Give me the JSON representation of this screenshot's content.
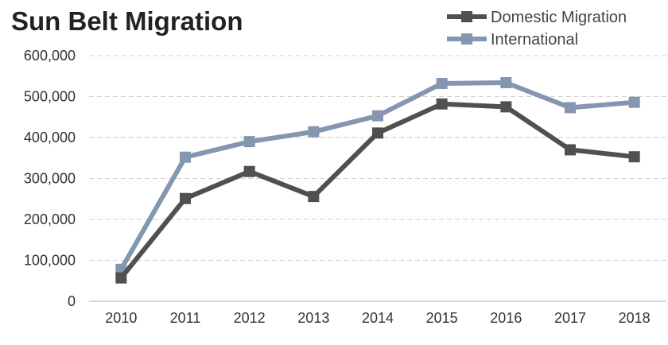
{
  "chart_data": {
    "type": "line",
    "title": "Sun Belt Migration",
    "categories": [
      "2010",
      "2011",
      "2012",
      "2013",
      "2014",
      "2015",
      "2016",
      "2017",
      "2018"
    ],
    "series": [
      {
        "name": "Domestic Migration",
        "color": "#505050",
        "values": [
          57000,
          251000,
          317000,
          256000,
          411000,
          482000,
          475000,
          370000,
          353000
        ]
      },
      {
        "name": "International",
        "color": "#8497B0",
        "values": [
          78000,
          352000,
          390000,
          414000,
          453000,
          532000,
          534000,
          473000,
          486000
        ]
      }
    ],
    "ylim": [
      0,
      600000
    ],
    "yticks": [
      "0",
      "100,000",
      "200,000",
      "300,000",
      "400,000",
      "500,000",
      "600,000"
    ],
    "grid": true,
    "legend": "top-right"
  }
}
